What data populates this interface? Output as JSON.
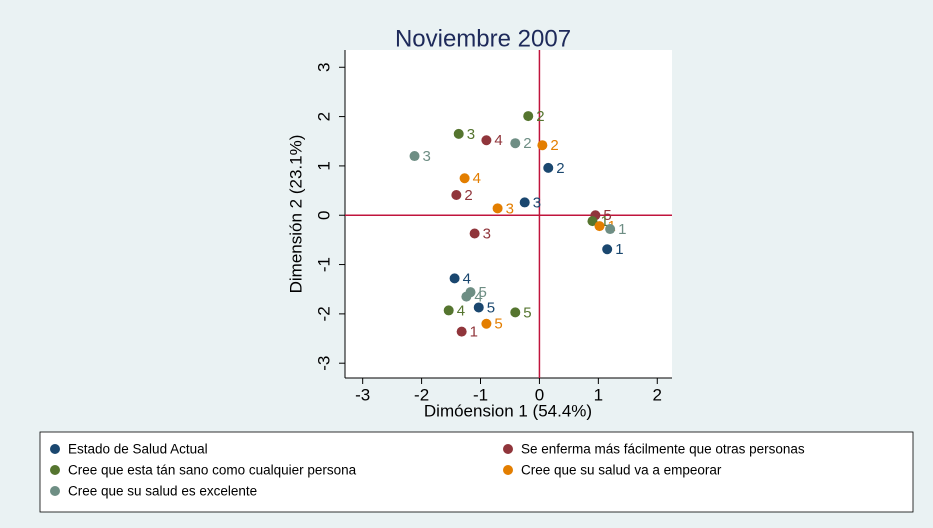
{
  "chart_data": {
    "type": "scatter",
    "title": "Noviembre 2007",
    "x_label": "Dimóension 1 (54.4%)",
    "y_label": "Dimensión 2 (23.1%)",
    "xlim": [
      -3.3,
      2.25
    ],
    "ylim": [
      -3.3,
      3.35
    ],
    "xticks": [
      -3,
      -2,
      -1,
      0,
      1,
      2
    ],
    "yticks": [
      -3,
      -2,
      -1,
      0,
      1,
      2,
      3
    ],
    "xline": 0,
    "yline": 0,
    "line_color": "#c0143c",
    "point_labels": [
      "1",
      "2",
      "3",
      "4",
      "5"
    ],
    "series": [
      {
        "name": "Estado de Salud Actual",
        "color": "#1a476f",
        "x": [
          1.15,
          0.15,
          -0.25,
          -1.44,
          -1.03
        ],
        "values": [
          -0.69,
          0.96,
          0.26,
          -1.28,
          -1.87
        ]
      },
      {
        "name": "Se enferma más fácilmente que otras personas",
        "color": "#90353b",
        "x": [
          -1.32,
          -1.41,
          -1.1,
          -0.9,
          0.95
        ],
        "values": [
          -2.36,
          0.41,
          -0.37,
          1.52,
          0.0
        ]
      },
      {
        "name": "Cree que esta tán sano como cualquier persona",
        "color": "#55752f",
        "x": [
          0.9,
          -0.19,
          -1.37,
          -1.54,
          -0.41
        ],
        "values": [
          -0.12,
          2.01,
          1.65,
          -1.93,
          -1.97
        ]
      },
      {
        "name": "Cree que su salud va a empeorar",
        "color": "#e37e00",
        "x": [
          1.02,
          0.05,
          -0.71,
          -1.27,
          -0.9
        ],
        "values": [
          -0.22,
          1.42,
          0.14,
          0.75,
          -2.2
        ]
      },
      {
        "name": "Cree que su salud es excelente",
        "color": "#6e8e84",
        "x": [
          1.2,
          -0.41,
          -2.12,
          -1.24,
          -1.17
        ],
        "values": [
          -0.28,
          1.46,
          1.2,
          -1.65,
          -1.56
        ]
      }
    ]
  }
}
